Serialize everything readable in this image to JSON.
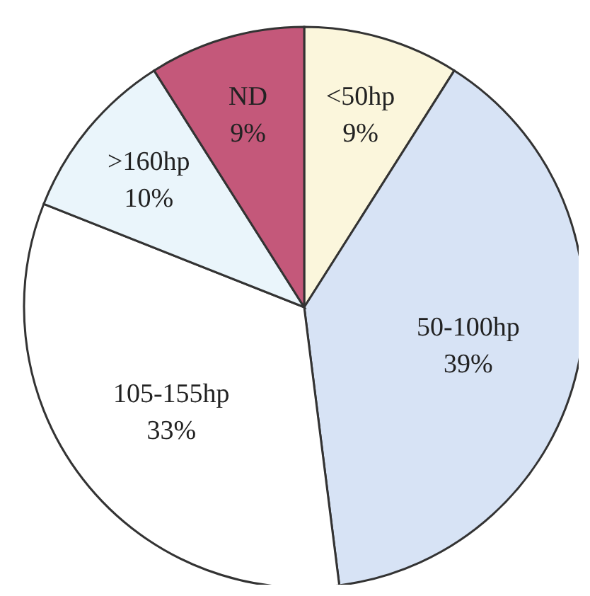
{
  "chart_data": {
    "type": "pie",
    "categories": [
      "<50hp",
      "50-100hp",
      "105-155hp",
      ">160hp",
      "ND"
    ],
    "values": [
      9,
      39,
      33,
      10,
      9
    ],
    "value_labels": [
      "9%",
      "39%",
      "33%",
      "10%",
      "9%"
    ],
    "colors": [
      "#fbf6dc",
      "#d7e3f5",
      "#ffffff",
      "#eaf5fb",
      "#c4587a"
    ]
  }
}
